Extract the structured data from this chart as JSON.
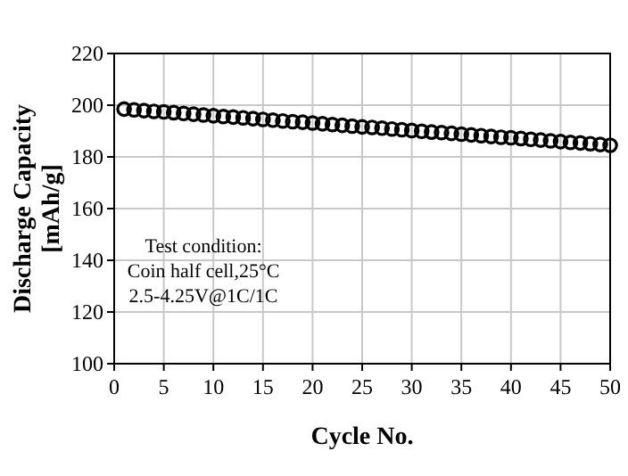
{
  "chart_data": {
    "type": "scatter",
    "xlabel": "Cycle No.",
    "ylabel": "Discharge Capacity\n[mAh/g]",
    "x": [
      1,
      2,
      3,
      4,
      5,
      6,
      7,
      8,
      9,
      10,
      11,
      12,
      13,
      14,
      15,
      16,
      17,
      18,
      19,
      20,
      21,
      22,
      23,
      24,
      25,
      26,
      27,
      28,
      29,
      30,
      31,
      32,
      33,
      34,
      35,
      36,
      37,
      38,
      39,
      40,
      41,
      42,
      43,
      44,
      45,
      46,
      47,
      48,
      49,
      50
    ],
    "series": [
      {
        "color": "#000000",
        "values": [
          198.5,
          198.2,
          197.9,
          197.6,
          197.4,
          197.1,
          196.8,
          196.5,
          196.2,
          195.9,
          195.6,
          195.4,
          195.1,
          194.8,
          194.5,
          194.2,
          193.9,
          193.6,
          193.4,
          193.1,
          192.8,
          192.5,
          192.2,
          191.9,
          191.6,
          191.4,
          191.1,
          190.8,
          190.5,
          190.2,
          189.9,
          189.6,
          189.4,
          189.1,
          188.8,
          188.5,
          188.2,
          187.9,
          187.6,
          187.4,
          187.1,
          186.8,
          186.5,
          186.2,
          185.9,
          185.6,
          185.4,
          185.1,
          184.8,
          184.5
        ]
      }
    ],
    "xlim": [
      0,
      50
    ],
    "xticks": [
      0,
      5,
      10,
      15,
      20,
      25,
      30,
      35,
      40,
      45,
      50
    ],
    "ylim": [
      100,
      220
    ],
    "yticks": [
      100,
      120,
      140,
      160,
      180,
      200,
      220
    ],
    "grid": true,
    "marker": "circle",
    "annotations": [
      "Test condition:\nCoin half cell,25°C\n2.5-4.25V@1C/1C"
    ]
  }
}
